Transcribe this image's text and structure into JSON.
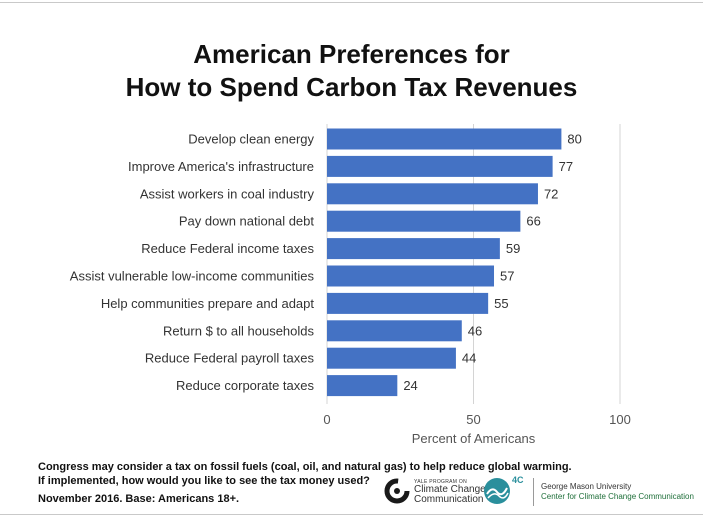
{
  "title": {
    "line1": "American Preferences for",
    "line2": "How to Spend Carbon Tax Revenues"
  },
  "chart_data": {
    "type": "bar",
    "orientation": "horizontal",
    "categories": [
      "Develop clean energy",
      "Improve America's infrastructure",
      "Assist workers in coal industry",
      "Pay down national debt",
      "Reduce Federal income taxes",
      "Assist vulnerable low-income communities",
      "Help communities prepare and adapt",
      "Return $ to all households",
      "Reduce Federal payroll taxes",
      "Reduce corporate taxes"
    ],
    "values": [
      80,
      77,
      72,
      66,
      59,
      57,
      55,
      46,
      44,
      24
    ],
    "xlabel": "Percent of Americans",
    "xlim": [
      0,
      100
    ],
    "ticks": [
      0,
      50,
      100
    ],
    "grid": true,
    "bar_color": "#4472c4"
  },
  "footnote": {
    "line1": "Congress may consider a tax on fossil fuels (coal, oil, and natural gas) to help reduce global warming.",
    "line2": "If implemented, how would you like to see the tax money used?",
    "line3": "November 2016. Base: Americans 18+."
  },
  "logos": {
    "yale_small": "YALE PROGRAM ON",
    "yale_line1": "Climate Change",
    "yale_line2": "Communication",
    "fourc": "4C",
    "gmu_line1": "George Mason University",
    "gmu_line2": "Center for Climate Change Communication"
  }
}
